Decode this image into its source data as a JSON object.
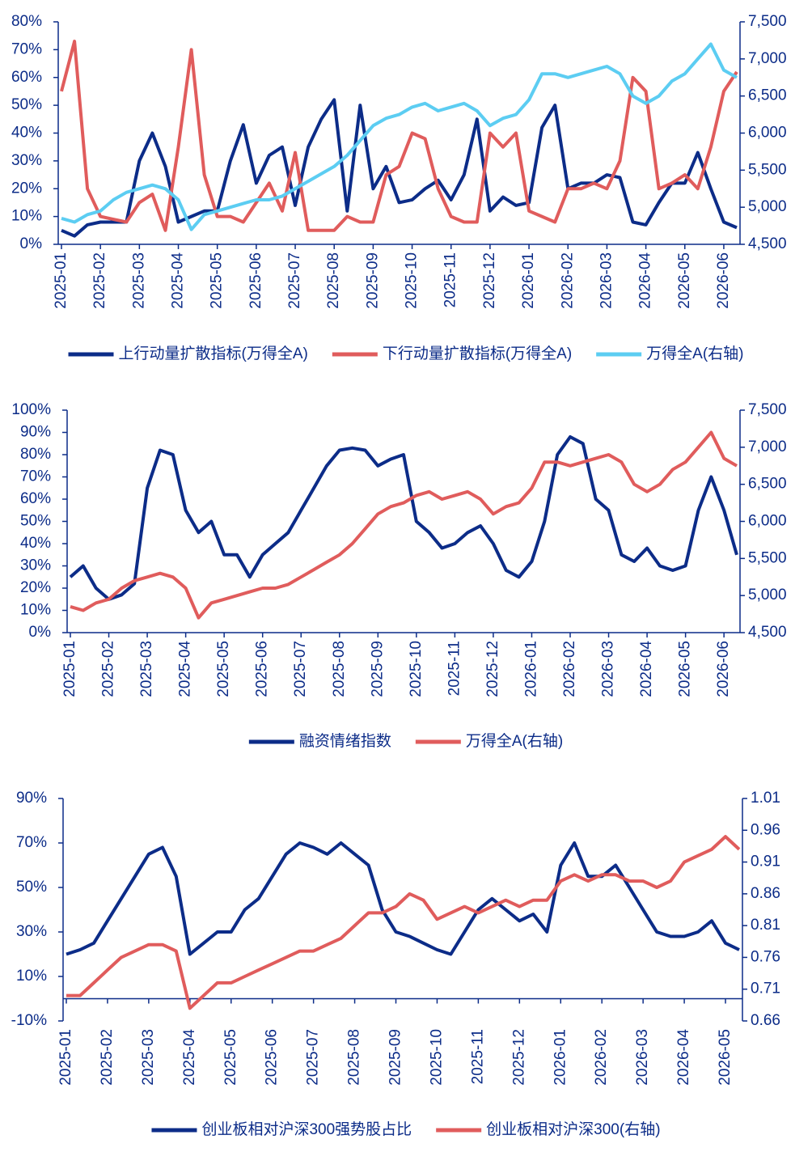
{
  "chart_data": [
    {
      "type": "line",
      "categories": [
        "2025-01",
        null,
        null,
        "2025-02",
        null,
        null,
        "2025-03",
        null,
        null,
        "2025-04",
        null,
        null,
        "2025-05",
        null,
        null,
        "2025-06",
        null,
        null,
        "2025-07",
        null,
        null,
        "2025-08",
        null,
        null,
        "2025-09",
        null,
        null,
        "2025-10",
        null,
        null,
        "2025-11",
        null,
        null,
        "2025-12",
        null,
        null,
        "2026-01",
        null,
        null,
        "2026-02",
        null,
        null,
        "2026-03",
        null,
        null,
        "2026-04",
        null,
        null,
        "2026-05",
        null,
        null,
        "2026-06",
        null
      ],
      "series": [
        {
          "name": "上行动量扩散指标(万得全A)",
          "color": "#0c2c88",
          "values": [
            5,
            3,
            7,
            8,
            8,
            8,
            30,
            40,
            28,
            8,
            10,
            12,
            12,
            30,
            43,
            22,
            32,
            35,
            14,
            35,
            45,
            52,
            12,
            50,
            20,
            28,
            15,
            16,
            20,
            23,
            16,
            25,
            45,
            12,
            17,
            14,
            15,
            42,
            50,
            20,
            22,
            22,
            25,
            24,
            8,
            7,
            15,
            22,
            22,
            33,
            20,
            8,
            6
          ]
        },
        {
          "name": "下行动量扩散指标(万得全A)",
          "color": "#e05c5c",
          "values": [
            55,
            73,
            20,
            10,
            9,
            8,
            15,
            18,
            5,
            35,
            70,
            25,
            10,
            10,
            8,
            15,
            22,
            12,
            33,
            5,
            5,
            5,
            10,
            8,
            8,
            25,
            28,
            40,
            38,
            20,
            10,
            8,
            8,
            40,
            35,
            40,
            12,
            10,
            8,
            20,
            20,
            22,
            20,
            30,
            60,
            55,
            20,
            22,
            25,
            20,
            35,
            55,
            62
          ]
        },
        {
          "name": "万得全A(右轴)",
          "color": "#5ccdf2",
          "axis": "y2",
          "values": [
            4850,
            4800,
            4900,
            4950,
            5100,
            5200,
            5250,
            5300,
            5250,
            5100,
            4700,
            4900,
            4950,
            5000,
            5050,
            5100,
            5100,
            5150,
            5250,
            5350,
            5450,
            5550,
            5700,
            5900,
            6100,
            6200,
            6250,
            6350,
            6400,
            6300,
            6350,
            6400,
            6300,
            6100,
            6200,
            6250,
            6450,
            6800,
            6800,
            6750,
            6800,
            6850,
            6900,
            6800,
            6500,
            6400,
            6500,
            6700,
            6800,
            7000,
            7200,
            6850,
            6750
          ]
        }
      ],
      "ylim": [
        0,
        80
      ],
      "yticks": [
        {
          "value": 0,
          "label": "0%"
        },
        {
          "value": 10,
          "label": "10%"
        },
        {
          "value": 20,
          "label": "20%"
        },
        {
          "value": 30,
          "label": "30%"
        },
        {
          "value": 40,
          "label": "40%"
        },
        {
          "value": 50,
          "label": "50%"
        },
        {
          "value": 60,
          "label": "60%"
        },
        {
          "value": 70,
          "label": "70%"
        },
        {
          "value": 80,
          "label": "80%"
        }
      ],
      "y2lim": [
        4500,
        7500
      ],
      "y2ticks": [
        {
          "value": 4500,
          "label": "4,500"
        },
        {
          "value": 5000,
          "label": "5,000"
        },
        {
          "value": 5500,
          "label": "5,500"
        },
        {
          "value": 6000,
          "label": "6,000"
        },
        {
          "value": 6500,
          "label": "6,500"
        },
        {
          "value": 7000,
          "label": "7,000"
        },
        {
          "value": 7500,
          "label": "7,500"
        }
      ],
      "legend": "bottom"
    },
    {
      "type": "line",
      "categories": [
        "2025-01",
        null,
        null,
        "2025-02",
        null,
        null,
        "2025-03",
        null,
        null,
        "2025-04",
        null,
        null,
        "2025-05",
        null,
        null,
        "2025-06",
        null,
        null,
        "2025-07",
        null,
        null,
        "2025-08",
        null,
        null,
        "2025-09",
        null,
        null,
        "2025-10",
        null,
        null,
        "2025-11",
        null,
        null,
        "2025-12",
        null,
        null,
        "2026-01",
        null,
        null,
        "2026-02",
        null,
        null,
        "2026-03",
        null,
        null,
        "2026-04",
        null,
        null,
        "2026-05",
        null,
        null,
        "2026-06",
        null
      ],
      "series": [
        {
          "name": "融资情绪指数",
          "color": "#0c2c88",
          "values": [
            25,
            30,
            20,
            15,
            17,
            22,
            65,
            82,
            80,
            55,
            45,
            50,
            35,
            35,
            25,
            35,
            40,
            45,
            55,
            65,
            75,
            82,
            83,
            82,
            75,
            78,
            80,
            50,
            45,
            38,
            40,
            45,
            48,
            40,
            28,
            25,
            32,
            50,
            80,
            88,
            85,
            60,
            55,
            35,
            32,
            38,
            30,
            28,
            30,
            55,
            70,
            55,
            35
          ]
        },
        {
          "name": "万得全A(右轴)",
          "color": "#e05c5c",
          "axis": "y2",
          "values": [
            4850,
            4800,
            4900,
            4950,
            5100,
            5200,
            5250,
            5300,
            5250,
            5100,
            4700,
            4900,
            4950,
            5000,
            5050,
            5100,
            5100,
            5150,
            5250,
            5350,
            5450,
            5550,
            5700,
            5900,
            6100,
            6200,
            6250,
            6350,
            6400,
            6300,
            6350,
            6400,
            6300,
            6100,
            6200,
            6250,
            6450,
            6800,
            6800,
            6750,
            6800,
            6850,
            6900,
            6800,
            6500,
            6400,
            6500,
            6700,
            6800,
            7000,
            7200,
            6850,
            6750
          ]
        }
      ],
      "ylim": [
        0,
        100
      ],
      "yticks": [
        {
          "value": 0,
          "label": "0%"
        },
        {
          "value": 10,
          "label": "10%"
        },
        {
          "value": 20,
          "label": "20%"
        },
        {
          "value": 30,
          "label": "30%"
        },
        {
          "value": 40,
          "label": "40%"
        },
        {
          "value": 50,
          "label": "50%"
        },
        {
          "value": 60,
          "label": "60%"
        },
        {
          "value": 70,
          "label": "70%"
        },
        {
          "value": 80,
          "label": "80%"
        },
        {
          "value": 90,
          "label": "90%"
        },
        {
          "value": 100,
          "label": "100%"
        }
      ],
      "y2lim": [
        4500,
        7500
      ],
      "y2ticks": [
        {
          "value": 4500,
          "label": "4,500"
        },
        {
          "value": 5000,
          "label": "5,000"
        },
        {
          "value": 5500,
          "label": "5,500"
        },
        {
          "value": 6000,
          "label": "6,000"
        },
        {
          "value": 6500,
          "label": "6,500"
        },
        {
          "value": 7000,
          "label": "7,000"
        },
        {
          "value": 7500,
          "label": "7,500"
        }
      ],
      "legend": "bottom"
    },
    {
      "type": "line",
      "categories": [
        "2025-01",
        null,
        null,
        "2025-02",
        null,
        null,
        "2025-03",
        null,
        null,
        "2025-04",
        null,
        null,
        "2025-05",
        null,
        null,
        "2025-06",
        null,
        null,
        "2025-07",
        null,
        null,
        "2025-08",
        null,
        null,
        "2025-09",
        null,
        null,
        "2025-10",
        null,
        null,
        "2025-11",
        null,
        null,
        "2025-12",
        null,
        null,
        "2026-01",
        null,
        null,
        "2026-02",
        null,
        null,
        "2026-03",
        null,
        null,
        "2026-04",
        null,
        null,
        "2026-05",
        null
      ],
      "series": [
        {
          "name": "创业板相对沪深300强势股占比",
          "color": "#0c2c88",
          "values": [
            20,
            22,
            25,
            35,
            45,
            55,
            65,
            68,
            55,
            20,
            25,
            30,
            30,
            40,
            45,
            55,
            65,
            70,
            68,
            65,
            70,
            65,
            60,
            40,
            30,
            28,
            25,
            22,
            20,
            30,
            40,
            45,
            40,
            35,
            38,
            30,
            60,
            70,
            55,
            55,
            60,
            50,
            40,
            30,
            28,
            28,
            30,
            35,
            25,
            22
          ]
        },
        {
          "name": "创业板相对沪深300(右轴)",
          "color": "#e05c5c",
          "axis": "y2",
          "values": [
            0.7,
            0.7,
            0.72,
            0.74,
            0.76,
            0.77,
            0.78,
            0.78,
            0.77,
            0.68,
            0.7,
            0.72,
            0.72,
            0.73,
            0.74,
            0.75,
            0.76,
            0.77,
            0.77,
            0.78,
            0.79,
            0.81,
            0.83,
            0.83,
            0.84,
            0.86,
            0.85,
            0.82,
            0.83,
            0.84,
            0.83,
            0.84,
            0.85,
            0.84,
            0.85,
            0.85,
            0.88,
            0.89,
            0.88,
            0.89,
            0.89,
            0.88,
            0.88,
            0.87,
            0.88,
            0.91,
            0.92,
            0.93,
            0.95,
            0.93
          ]
        }
      ],
      "ylim": [
        -10,
        90
      ],
      "yticks": [
        {
          "value": -10,
          "label": "-10%"
        },
        {
          "value": 10,
          "label": "10%"
        },
        {
          "value": 30,
          "label": "30%"
        },
        {
          "value": 50,
          "label": "50%"
        },
        {
          "value": 70,
          "label": "70%"
        },
        {
          "value": 90,
          "label": "90%"
        }
      ],
      "y2lim": [
        0.66,
        1.01
      ],
      "y2ticks": [
        0.66,
        0.71,
        0.76,
        0.81,
        0.86,
        0.91,
        0.96,
        1.01
      ],
      "legend": "bottom"
    }
  ]
}
